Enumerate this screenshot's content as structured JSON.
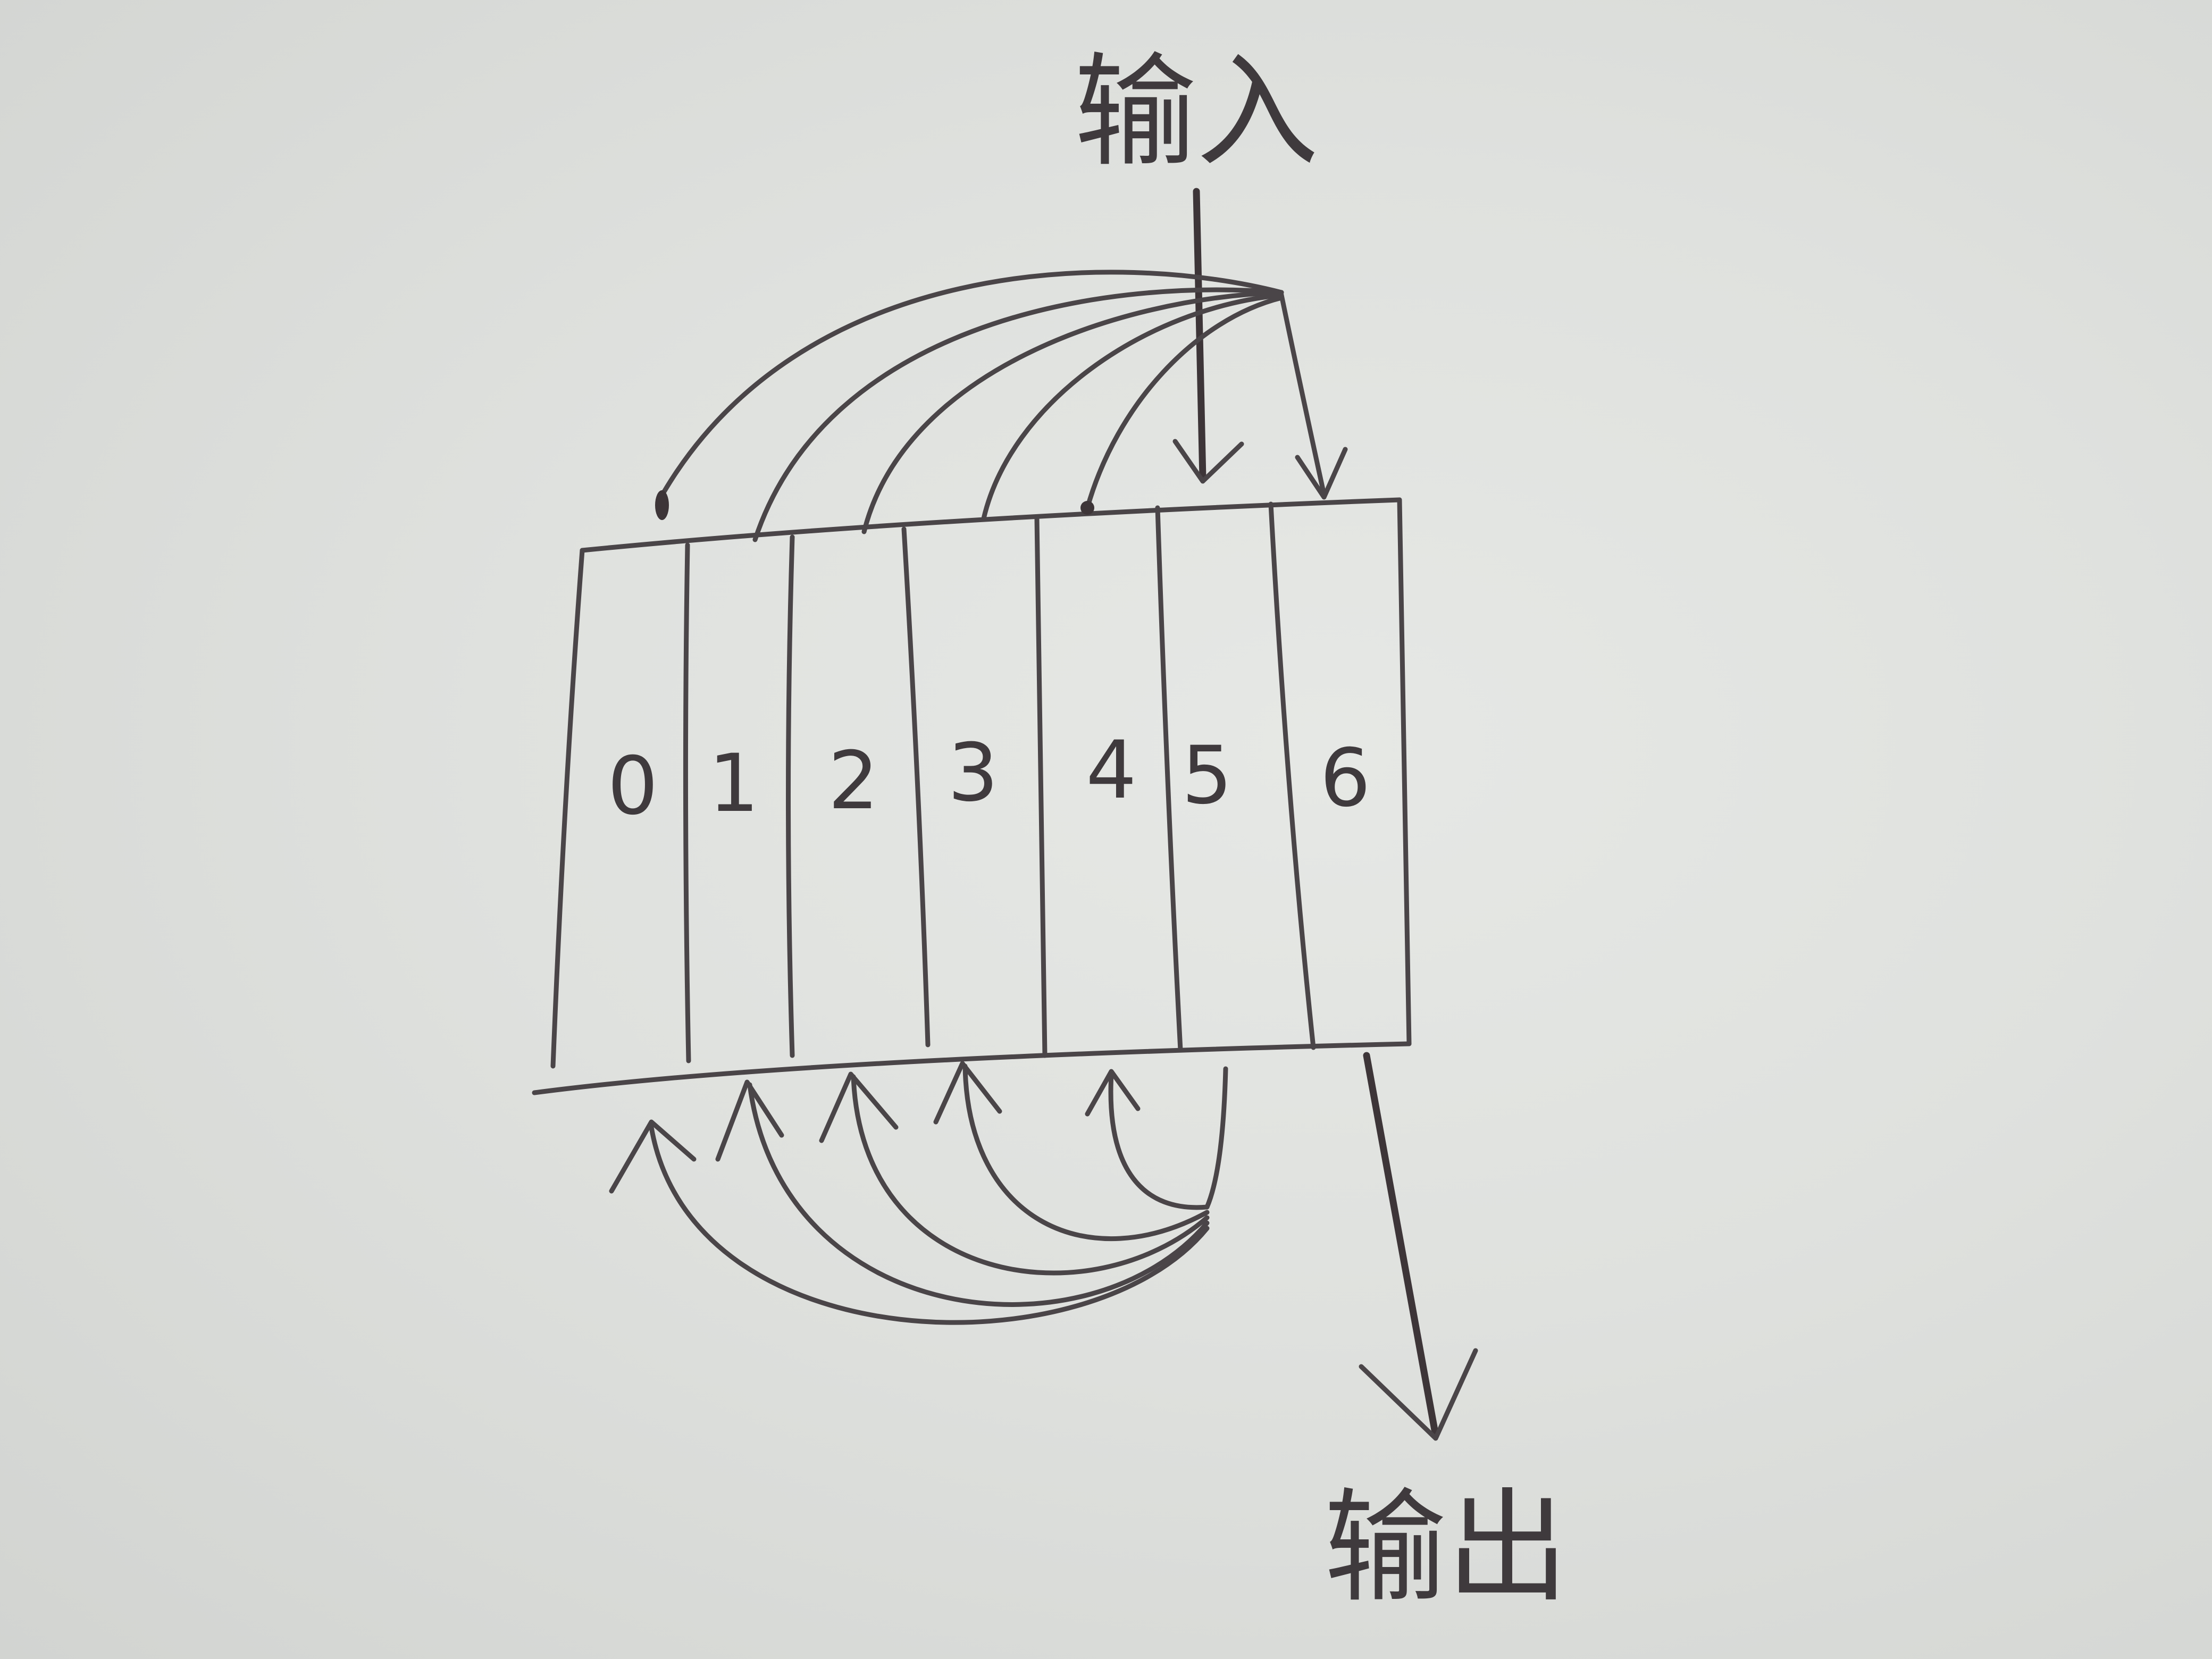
{
  "diagram": {
    "cells": [
      "0",
      "1",
      "2",
      "3",
      "4",
      "5",
      "6"
    ],
    "input_label": "输入",
    "output_label": "输出",
    "input_arrow_target_cells": [
      "5",
      "6"
    ],
    "top_shift_arcs": [
      {
        "from": "input",
        "to": "0"
      },
      {
        "from": "input",
        "to": "1"
      },
      {
        "from": "input",
        "to": "2"
      },
      {
        "from": "input",
        "to": "3"
      },
      {
        "from": "input",
        "to": "4"
      }
    ],
    "bottom_feedback_arcs": [
      {
        "from": "5",
        "to": "0"
      },
      {
        "from": "5",
        "to": "1"
      },
      {
        "from": "5",
        "to": "2"
      },
      {
        "from": "5",
        "to": "3"
      },
      {
        "from": "5",
        "to": "4"
      }
    ],
    "output_arrow_source_cell": "6"
  }
}
